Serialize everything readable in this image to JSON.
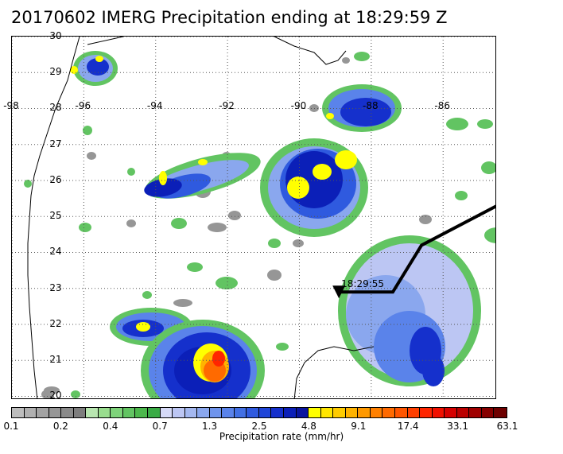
{
  "title": "20170602 IMERG Precipitation ending at 18:29:59 Z",
  "map": {
    "lon_range": [
      -98.0,
      -84.5
    ],
    "lat_range": [
      19.9,
      30.0
    ],
    "lon_labels": [
      "-98",
      "-96",
      "-94",
      "-92",
      "-90",
      "-88",
      "-86"
    ],
    "lat_labels": [
      "30",
      "29",
      "28",
      "27",
      "26",
      "25",
      "24",
      "23",
      "22",
      "21",
      "20"
    ],
    "gridlines": "dotted",
    "track_label": "18:29:55",
    "track_end": {
      "lon": -88.9,
      "lat": 22.9
    },
    "coastline_color": "#000000",
    "track_color": "#000000"
  },
  "colorbar": {
    "title": "Precipitation rate (mm/hr)",
    "tick_labels": [
      "0.1",
      "0.2",
      "0.4",
      "0.7",
      "1.3",
      "2.5",
      "4.8",
      "9.1",
      "17.4",
      "33.1",
      "63.1"
    ],
    "colors": [
      "#bdbdbd",
      "#b0b0b0",
      "#a3a3a3",
      "#969696",
      "#8a8a8a",
      "#7d7d7d",
      "#b8e6b0",
      "#99dd8e",
      "#7ed37a",
      "#62c462",
      "#4cb84c",
      "#3aab45",
      "#d6daf7",
      "#bcc6f3",
      "#a4b8f0",
      "#8aa7ee",
      "#6f94ec",
      "#5a83ea",
      "#4270e4",
      "#2f5adf",
      "#1f45d8",
      "#1530cc",
      "#0b1fb8",
      "#0a159e",
      "#ffff00",
      "#ffe600",
      "#ffcc00",
      "#ffb300",
      "#ff9900",
      "#ff8000",
      "#ff6a00",
      "#ff5500",
      "#ff3f00",
      "#ff2500",
      "#f01000",
      "#d60000",
      "#bb0000",
      "#a00000",
      "#860000",
      "#6e0000"
    ]
  }
}
